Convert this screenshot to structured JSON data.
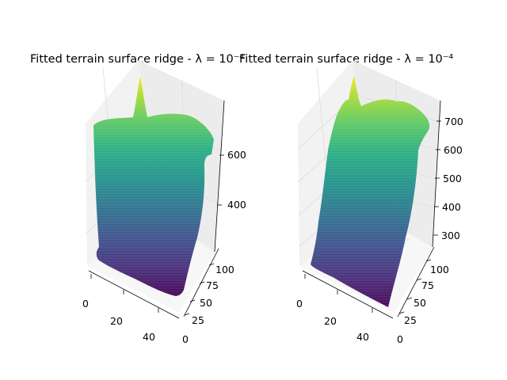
{
  "chart_data": [
    {
      "type": "surface3d",
      "title": "Fitted terrain surface ridge - λ = 10⁻⁴",
      "colormap": "viridis",
      "x_ticks": [
        "0",
        "20",
        "40"
      ],
      "y_ticks": [
        "0",
        "25",
        "50",
        "75",
        "100"
      ],
      "z_ticks": [
        "400",
        "600"
      ],
      "xlim": [
        0,
        48
      ],
      "ylim": [
        0,
        110
      ],
      "zlim": [
        270,
        780
      ]
    },
    {
      "type": "surface3d",
      "title": "Fitted terrain surface ridge - λ = 10⁻⁴",
      "colormap": "viridis",
      "x_ticks": [
        "0",
        "20",
        "40"
      ],
      "y_ticks": [
        "0",
        "25",
        "50",
        "75",
        "100"
      ],
      "z_ticks": [
        "300",
        "400",
        "500",
        "600",
        "700"
      ],
      "xlim": [
        0,
        48
      ],
      "ylim": [
        0,
        110
      ],
      "zlim": [
        270,
        780
      ]
    }
  ]
}
